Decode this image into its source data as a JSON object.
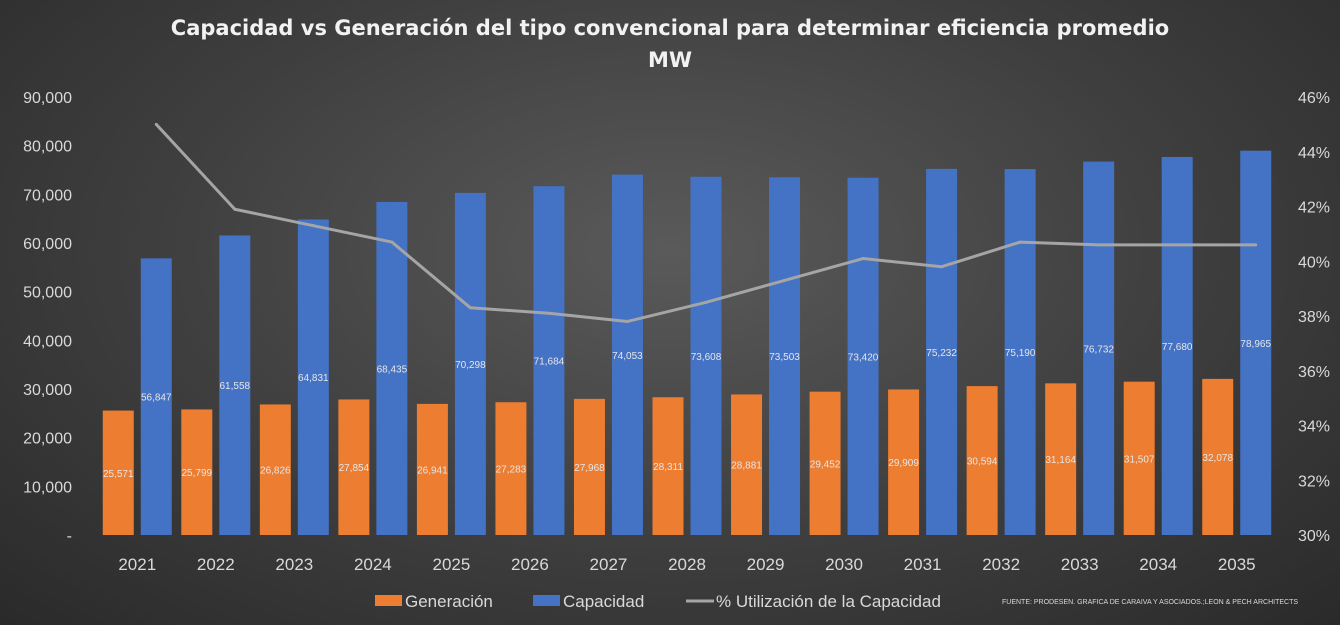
{
  "chart_data": {
    "type": "bar",
    "title": "Capacidad vs Generación del tipo convencional para determinar eficiencia promedio",
    "subtitle": "MW",
    "categories": [
      "2021",
      "2022",
      "2023",
      "2024",
      "2025",
      "2026",
      "2027",
      "2028",
      "2029",
      "2030",
      "2031",
      "2032",
      "2033",
      "2034",
      "2035"
    ],
    "series": [
      {
        "name": "Generación",
        "type": "bar",
        "axis": "left",
        "color": "#ed7d31",
        "values": [
          25571,
          25799,
          26826,
          27854,
          26941,
          27283,
          27968,
          28311,
          28881,
          29452,
          29909,
          30594,
          31164,
          31507,
          32078
        ],
        "labels": [
          "25,571",
          "25,799",
          "26,826",
          "27,854",
          "26,941",
          "27,283",
          "27,968",
          "28,311",
          "28,881",
          "29,452",
          "29,909",
          "30,594",
          "31,164",
          "31,507",
          "32,078"
        ]
      },
      {
        "name": "Capacidad",
        "type": "bar",
        "axis": "left",
        "color": "#4472c4",
        "values": [
          56847,
          61558,
          64831,
          68435,
          70298,
          71684,
          74053,
          73608,
          73503,
          73420,
          75232,
          75190,
          76732,
          77680,
          78965
        ],
        "labels": [
          "56,847",
          "61,558",
          "64,831",
          "68,435",
          "70,298",
          "71,684",
          "74,053",
          "73,608",
          "73,503",
          "73,420",
          "75,232",
          "75,190",
          "76,732",
          "77,680",
          "78,965"
        ]
      },
      {
        "name": "% Utilización de la Capacidad",
        "type": "line",
        "axis": "right",
        "color": "#a5a5a5",
        "values": [
          0.45,
          0.419,
          0.413,
          0.407,
          0.383,
          0.381,
          0.378,
          0.385,
          0.393,
          0.401,
          0.398,
          0.407,
          0.406,
          0.406,
          0.406
        ]
      }
    ],
    "ylim": [
      0,
      90000
    ],
    "yticks": [
      "-",
      "10,000",
      "20,000",
      "30,000",
      "40,000",
      "50,000",
      "60,000",
      "70,000",
      "80,000",
      "90,000"
    ],
    "y2lim": [
      0.3,
      0.46
    ],
    "y2ticks": [
      "30%",
      "32%",
      "34%",
      "36%",
      "38%",
      "40%",
      "42%",
      "44%",
      "46%"
    ],
    "grid": false,
    "legend_position": "bottom",
    "source": "FUENTE: PRODESEN. GRAFICA DE CARAIVA Y ASOCIADOS.;LEON & PECH ARCHITECTS"
  }
}
